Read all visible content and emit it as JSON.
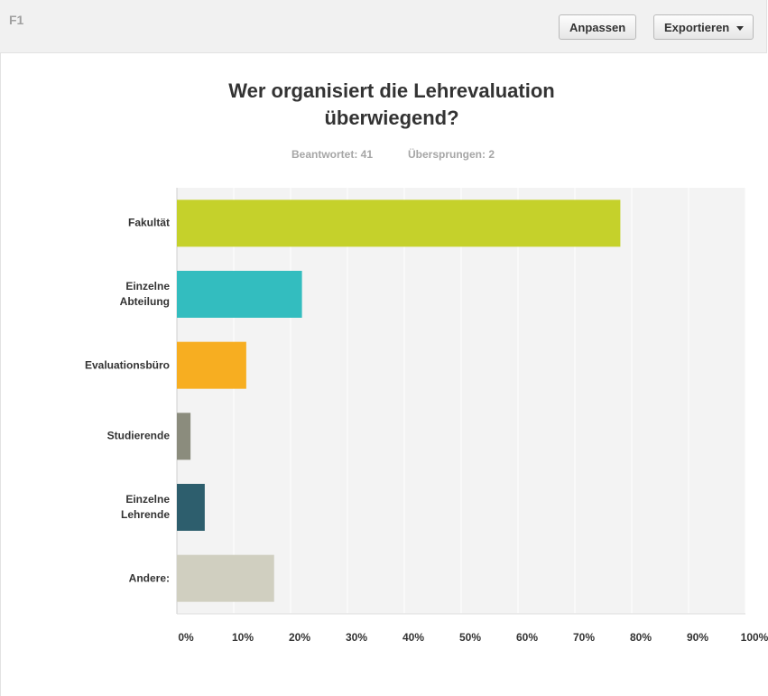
{
  "header": {
    "id": "F1",
    "buttons": [
      "Anpassen",
      "Exportieren"
    ]
  },
  "chart_data": {
    "type": "bar",
    "orientation": "horizontal",
    "title": "Wer organisiert die Lehrevaluation überwiegend?",
    "subtitle": [
      "Beantwortet: 41",
      "Übersprungen: 2"
    ],
    "categories": [
      "Fakultät",
      "Einzelne Abteilung",
      "Evaluationsbüro",
      "Studierende",
      "Einzelne Lehrende",
      "Andere:"
    ],
    "values": [
      78.0,
      22.0,
      12.2,
      2.4,
      4.9,
      17.1
    ],
    "colors": [
      "#c5d12b",
      "#33bdbf",
      "#f7ae21",
      "#8b8c7d",
      "#2d5e6d",
      "#d0cfc0"
    ],
    "xlim": [
      0,
      100
    ],
    "xticks": [
      {
        "value": 0,
        "label": "0%"
      },
      {
        "value": 10,
        "label": "10%"
      },
      {
        "value": 20,
        "label": "20%"
      },
      {
        "value": 30,
        "label": "30%"
      },
      {
        "value": 40,
        "label": "40%"
      },
      {
        "value": 50,
        "label": "50%"
      },
      {
        "value": 60,
        "label": "60%"
      },
      {
        "value": 70,
        "label": "70%"
      },
      {
        "value": 80,
        "label": "80%"
      },
      {
        "value": 90,
        "label": "90%"
      },
      {
        "value": 100,
        "label": "100%"
      }
    ],
    "grid": true
  }
}
